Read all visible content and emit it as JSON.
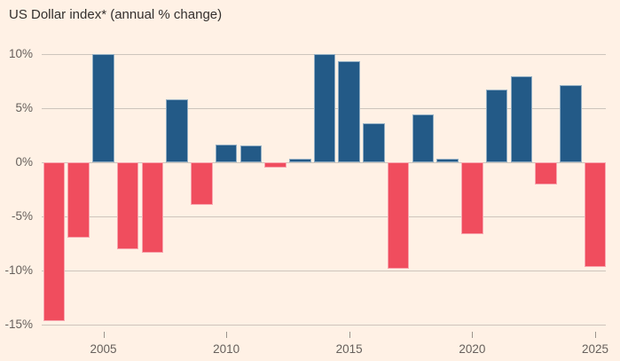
{
  "title": "US Dollar index* (annual % change)",
  "colors": {
    "background": "#FFF1E5",
    "positive_bar": "#235A87",
    "negative_bar": "#F04D5E",
    "gridline": "#CDC5BC",
    "axis_text": "#66605C",
    "title_text": "#33302E",
    "tick_mark": "#9B948C"
  },
  "chart_data": {
    "type": "bar",
    "title": "US Dollar index* (annual % change)",
    "unit": "%",
    "x": [
      2003,
      2004,
      2005,
      2006,
      2007,
      2008,
      2009,
      2010,
      2011,
      2012,
      2013,
      2014,
      2015,
      2016,
      2017,
      2018,
      2019,
      2020,
      2021,
      2022,
      2023,
      2024,
      2025
    ],
    "values": [
      -14.7,
      -7.0,
      10.0,
      -8.1,
      -8.4,
      5.8,
      -4.0,
      1.6,
      1.5,
      -0.5,
      0.3,
      10.0,
      9.3,
      3.6,
      -9.9,
      4.4,
      0.3,
      -6.7,
      6.7,
      7.9,
      -2.1,
      7.1,
      -9.7
    ],
    "xlabel": "",
    "ylabel": "annual % change",
    "ylim": [
      -15,
      10
    ],
    "y_ticks": [
      10,
      5,
      0,
      -5,
      -10,
      -15
    ],
    "y_tick_labels": [
      "10%",
      "5%",
      "0%",
      "-5%",
      "-10%",
      "-15%"
    ],
    "x_ticks": [
      2005,
      2010,
      2015,
      2020,
      2025
    ],
    "x_tick_labels": [
      "2005",
      "2010",
      "2015",
      "2020",
      "2025"
    ],
    "grid": true,
    "legend": "none"
  }
}
